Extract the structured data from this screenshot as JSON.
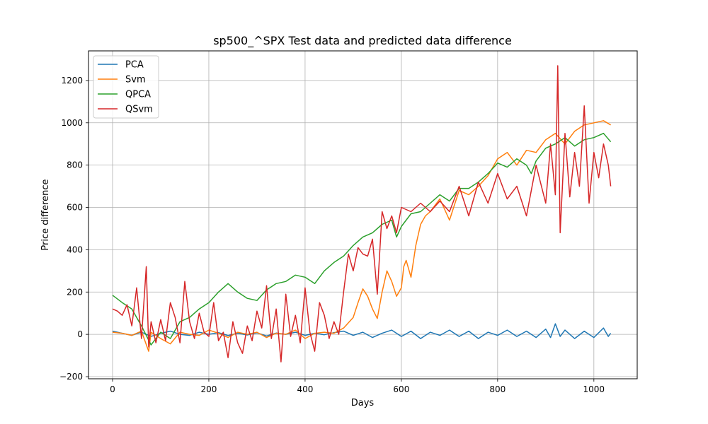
{
  "chart_data": {
    "type": "line",
    "title": "sp500_^SPX Test data and predicted data difference",
    "xlabel": "Days",
    "ylabel": "Price difference",
    "xlim": [
      -50,
      1090
    ],
    "ylim": [
      -210,
      1340
    ],
    "xticks": [
      0,
      200,
      400,
      600,
      800,
      1000
    ],
    "yticks": [
      -200,
      0,
      200,
      400,
      600,
      800,
      1000,
      1200
    ],
    "grid": true,
    "legend_position": "upper-left",
    "series": [
      {
        "name": "PCA",
        "color": "#1f77b4",
        "points": [
          [
            0,
            15
          ],
          [
            20,
            5
          ],
          [
            40,
            -5
          ],
          [
            60,
            10
          ],
          [
            80,
            -10
          ],
          [
            100,
            5
          ],
          [
            120,
            15
          ],
          [
            140,
            0
          ],
          [
            160,
            -5
          ],
          [
            180,
            10
          ],
          [
            200,
            0
          ],
          [
            220,
            8
          ],
          [
            240,
            -6
          ],
          [
            260,
            5
          ],
          [
            280,
            -3
          ],
          [
            300,
            7
          ],
          [
            320,
            -8
          ],
          [
            340,
            6
          ],
          [
            360,
            0
          ],
          [
            380,
            10
          ],
          [
            400,
            -5
          ],
          [
            420,
            5
          ],
          [
            440,
            -2
          ],
          [
            460,
            8
          ],
          [
            480,
            15
          ],
          [
            500,
            -5
          ],
          [
            520,
            10
          ],
          [
            540,
            -15
          ],
          [
            560,
            5
          ],
          [
            580,
            20
          ],
          [
            600,
            -10
          ],
          [
            620,
            15
          ],
          [
            640,
            -20
          ],
          [
            660,
            10
          ],
          [
            680,
            -5
          ],
          [
            700,
            20
          ],
          [
            720,
            -10
          ],
          [
            740,
            15
          ],
          [
            760,
            -20
          ],
          [
            780,
            10
          ],
          [
            800,
            -5
          ],
          [
            820,
            20
          ],
          [
            840,
            -10
          ],
          [
            860,
            15
          ],
          [
            880,
            -15
          ],
          [
            900,
            25
          ],
          [
            910,
            -15
          ],
          [
            920,
            50
          ],
          [
            930,
            -10
          ],
          [
            940,
            20
          ],
          [
            960,
            -20
          ],
          [
            980,
            15
          ],
          [
            1000,
            -15
          ],
          [
            1020,
            30
          ],
          [
            1030,
            -10
          ],
          [
            1035,
            5
          ]
        ]
      },
      {
        "name": "Svm",
        "color": "#ff7f0e",
        "points": [
          [
            0,
            10
          ],
          [
            20,
            5
          ],
          [
            40,
            -5
          ],
          [
            60,
            15
          ],
          [
            75,
            -80
          ],
          [
            80,
            10
          ],
          [
            100,
            -20
          ],
          [
            120,
            -45
          ],
          [
            140,
            10
          ],
          [
            160,
            0
          ],
          [
            180,
            -5
          ],
          [
            200,
            20
          ],
          [
            220,
            5
          ],
          [
            240,
            -15
          ],
          [
            260,
            10
          ],
          [
            280,
            0
          ],
          [
            300,
            10
          ],
          [
            320,
            -15
          ],
          [
            340,
            5
          ],
          [
            360,
            0
          ],
          [
            380,
            20
          ],
          [
            400,
            -20
          ],
          [
            420,
            5
          ],
          [
            440,
            10
          ],
          [
            460,
            5
          ],
          [
            480,
            30
          ],
          [
            500,
            80
          ],
          [
            510,
            150
          ],
          [
            520,
            215
          ],
          [
            530,
            180
          ],
          [
            540,
            120
          ],
          [
            550,
            75
          ],
          [
            560,
            200
          ],
          [
            570,
            300
          ],
          [
            580,
            250
          ],
          [
            590,
            180
          ],
          [
            600,
            220
          ],
          [
            605,
            320
          ],
          [
            610,
            350
          ],
          [
            620,
            270
          ],
          [
            630,
            420
          ],
          [
            640,
            520
          ],
          [
            650,
            560
          ],
          [
            660,
            580
          ],
          [
            680,
            640
          ],
          [
            700,
            540
          ],
          [
            720,
            680
          ],
          [
            740,
            660
          ],
          [
            760,
            700
          ],
          [
            780,
            750
          ],
          [
            800,
            830
          ],
          [
            820,
            860
          ],
          [
            840,
            800
          ],
          [
            860,
            870
          ],
          [
            880,
            860
          ],
          [
            900,
            920
          ],
          [
            920,
            950
          ],
          [
            940,
            900
          ],
          [
            960,
            960
          ],
          [
            980,
            990
          ],
          [
            1000,
            1000
          ],
          [
            1020,
            1010
          ],
          [
            1035,
            990
          ]
        ]
      },
      {
        "name": "QPCA",
        "color": "#2ca02c",
        "points": [
          [
            0,
            185
          ],
          [
            20,
            150
          ],
          [
            40,
            120
          ],
          [
            60,
            40
          ],
          [
            80,
            -50
          ],
          [
            100,
            10
          ],
          [
            120,
            -20
          ],
          [
            140,
            60
          ],
          [
            160,
            80
          ],
          [
            180,
            120
          ],
          [
            200,
            150
          ],
          [
            220,
            200
          ],
          [
            240,
            240
          ],
          [
            260,
            200
          ],
          [
            280,
            170
          ],
          [
            300,
            160
          ],
          [
            320,
            210
          ],
          [
            340,
            240
          ],
          [
            360,
            250
          ],
          [
            380,
            280
          ],
          [
            400,
            270
          ],
          [
            420,
            240
          ],
          [
            440,
            300
          ],
          [
            460,
            340
          ],
          [
            480,
            370
          ],
          [
            500,
            420
          ],
          [
            520,
            460
          ],
          [
            540,
            480
          ],
          [
            560,
            520
          ],
          [
            580,
            540
          ],
          [
            590,
            460
          ],
          [
            600,
            510
          ],
          [
            620,
            570
          ],
          [
            640,
            580
          ],
          [
            660,
            620
          ],
          [
            680,
            660
          ],
          [
            700,
            630
          ],
          [
            720,
            690
          ],
          [
            740,
            690
          ],
          [
            760,
            720
          ],
          [
            780,
            760
          ],
          [
            800,
            810
          ],
          [
            820,
            790
          ],
          [
            840,
            830
          ],
          [
            860,
            800
          ],
          [
            870,
            760
          ],
          [
            880,
            820
          ],
          [
            900,
            880
          ],
          [
            920,
            900
          ],
          [
            940,
            930
          ],
          [
            960,
            890
          ],
          [
            980,
            920
          ],
          [
            1000,
            930
          ],
          [
            1020,
            950
          ],
          [
            1035,
            910
          ]
        ]
      },
      {
        "name": "QSvm",
        "color": "#d62728",
        "points": [
          [
            0,
            120
          ],
          [
            10,
            110
          ],
          [
            20,
            90
          ],
          [
            30,
            140
          ],
          [
            40,
            40
          ],
          [
            50,
            220
          ],
          [
            60,
            -20
          ],
          [
            70,
            320
          ],
          [
            75,
            -60
          ],
          [
            80,
            60
          ],
          [
            90,
            -40
          ],
          [
            100,
            70
          ],
          [
            110,
            -30
          ],
          [
            120,
            150
          ],
          [
            130,
            80
          ],
          [
            140,
            -40
          ],
          [
            150,
            250
          ],
          [
            160,
            60
          ],
          [
            170,
            -20
          ],
          [
            180,
            100
          ],
          [
            190,
            10
          ],
          [
            200,
            -10
          ],
          [
            210,
            150
          ],
          [
            220,
            -30
          ],
          [
            230,
            10
          ],
          [
            240,
            -110
          ],
          [
            250,
            60
          ],
          [
            260,
            -40
          ],
          [
            270,
            -90
          ],
          [
            280,
            40
          ],
          [
            290,
            -30
          ],
          [
            300,
            110
          ],
          [
            310,
            30
          ],
          [
            320,
            230
          ],
          [
            330,
            -20
          ],
          [
            340,
            120
          ],
          [
            350,
            -130
          ],
          [
            360,
            190
          ],
          [
            370,
            -10
          ],
          [
            380,
            90
          ],
          [
            390,
            -40
          ],
          [
            400,
            220
          ],
          [
            410,
            10
          ],
          [
            420,
            -80
          ],
          [
            430,
            150
          ],
          [
            440,
            90
          ],
          [
            450,
            -20
          ],
          [
            460,
            60
          ],
          [
            470,
            0
          ],
          [
            480,
            200
          ],
          [
            490,
            380
          ],
          [
            500,
            300
          ],
          [
            510,
            410
          ],
          [
            520,
            380
          ],
          [
            530,
            370
          ],
          [
            540,
            450
          ],
          [
            550,
            190
          ],
          [
            560,
            580
          ],
          [
            570,
            500
          ],
          [
            580,
            560
          ],
          [
            590,
            480
          ],
          [
            600,
            600
          ],
          [
            620,
            580
          ],
          [
            640,
            620
          ],
          [
            660,
            580
          ],
          [
            680,
            630
          ],
          [
            700,
            580
          ],
          [
            720,
            700
          ],
          [
            740,
            560
          ],
          [
            760,
            720
          ],
          [
            780,
            620
          ],
          [
            800,
            760
          ],
          [
            820,
            640
          ],
          [
            840,
            700
          ],
          [
            860,
            560
          ],
          [
            880,
            800
          ],
          [
            900,
            620
          ],
          [
            910,
            900
          ],
          [
            920,
            660
          ],
          [
            925,
            1270
          ],
          [
            930,
            480
          ],
          [
            940,
            950
          ],
          [
            950,
            650
          ],
          [
            960,
            860
          ],
          [
            970,
            700
          ],
          [
            980,
            1080
          ],
          [
            990,
            620
          ],
          [
            1000,
            860
          ],
          [
            1010,
            740
          ],
          [
            1020,
            900
          ],
          [
            1030,
            800
          ],
          [
            1035,
            700
          ]
        ]
      }
    ]
  }
}
